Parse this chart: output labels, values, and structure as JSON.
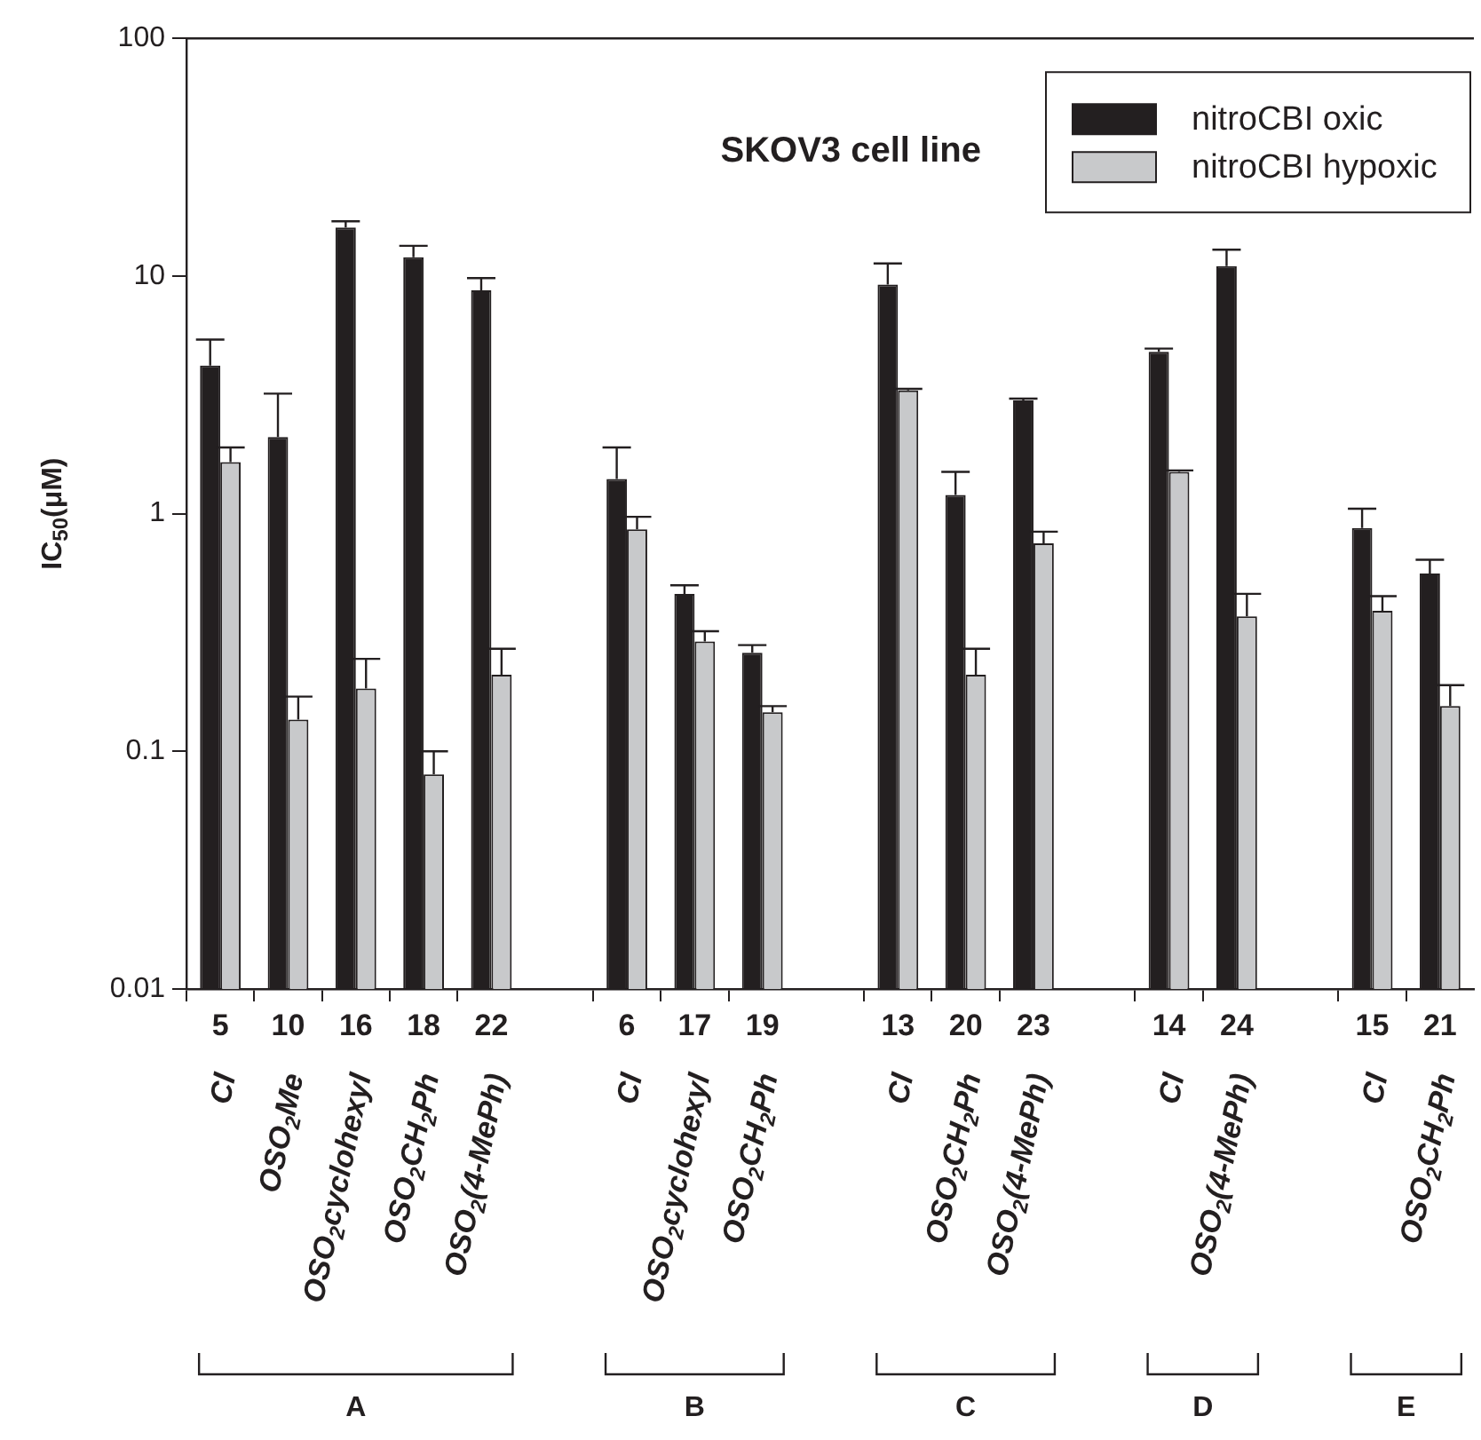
{
  "chart_data": {
    "type": "bar",
    "title": "SKOV3 cell line",
    "ylabel": "IC$_{50}$(μM)",
    "categories": [
      "5",
      "10",
      "16",
      "18",
      "22",
      null,
      "6",
      "17",
      "19",
      null,
      "13",
      "20",
      "23",
      null,
      "14",
      "24",
      null,
      "15",
      "21"
    ],
    "series": [
      {
        "name": "nitroCBI oxic",
        "color": "#231f20",
        "values": [
          4.2,
          2.1,
          16,
          12,
          8.7,
          null,
          1.4,
          0.46,
          0.26,
          null,
          9.2,
          1.2,
          3.0,
          null,
          4.8,
          11,
          null,
          0.87,
          0.56
        ],
        "errors": [
          [
            4.2,
            5.4
          ],
          [
            2.1,
            3.2
          ],
          [
            16,
            17
          ],
          [
            12,
            13.4
          ],
          [
            8.7,
            9.8
          ],
          null,
          [
            1.4,
            1.9
          ],
          [
            0.46,
            0.5
          ],
          [
            0.26,
            0.28
          ],
          null,
          [
            9.2,
            11.3
          ],
          [
            1.2,
            1.5
          ],
          [
            3.0,
            3.05
          ],
          null,
          [
            4.8,
            4.95
          ],
          [
            11,
            12.9
          ],
          null,
          [
            0.87,
            1.05
          ],
          [
            0.56,
            0.64
          ]
        ]
      },
      {
        "name": "nitroCBI hypoxic",
        "color": "#c8c9cb",
        "values": [
          1.65,
          0.136,
          0.184,
          0.08,
          0.21,
          null,
          0.86,
          0.29,
          0.146,
          null,
          3.3,
          0.21,
          0.75,
          null,
          1.5,
          0.37,
          null,
          0.39,
          0.155
        ],
        "errors": [
          [
            1.65,
            1.9
          ],
          [
            0.136,
            0.17
          ],
          [
            0.184,
            0.245
          ],
          [
            0.08,
            0.1
          ],
          [
            0.21,
            0.27
          ],
          null,
          [
            0.86,
            0.97
          ],
          [
            0.29,
            0.32
          ],
          [
            0.146,
            0.155
          ],
          null,
          [
            3.3,
            3.35
          ],
          [
            0.21,
            0.27
          ],
          [
            0.75,
            0.84
          ],
          null,
          [
            1.5,
            1.52
          ],
          [
            0.37,
            0.46
          ],
          null,
          [
            0.39,
            0.45
          ],
          [
            0.155,
            0.19
          ]
        ]
      }
    ],
    "log": true,
    "ylim": [
      0.01,
      100
    ],
    "yticks": [
      0.01,
      0.1,
      1,
      10,
      100
    ],
    "grid": false,
    "legend": "top right",
    "annotations": [
      "Cl",
      "OSO$_{2}$Me",
      "OSO$_{2}$cyclohexyl",
      "OSO$_{2}$CH$_{2}$Ph",
      "OSO$_{2}$(4-MePh)",
      "Cl",
      "OSO$_{2}$cyclohexyl",
      "OSO$_{2}$CH$_{2}$Ph",
      "Cl",
      "OSO$_{2}$CH$_{2}$Ph",
      "OSO$_{2}$(4-MePh)",
      "Cl",
      "OSO$_{2}$(4-MePh)",
      "Cl",
      "OSO$_{2}$CH$_{2}$Ph",
      "A",
      "B",
      "C",
      "D",
      "E"
    ]
  }
}
